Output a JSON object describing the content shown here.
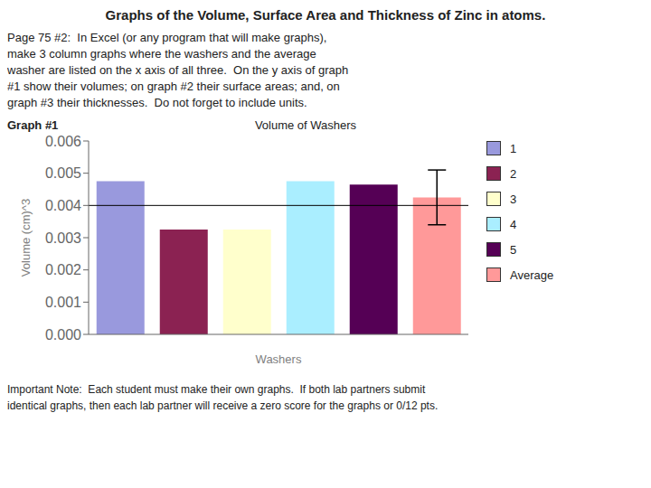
{
  "chart_data": {
    "type": "bar",
    "title": "Graphs of the Volume, Surface Area and Thickness of Zinc in atoms.",
    "subtitle": "Volume of Washers",
    "xlabel": "Washers",
    "ylabel": "Volume (cm)^3",
    "categories": [
      "1",
      "2",
      "3",
      "4",
      "5",
      "Average"
    ],
    "values": [
      0.00475,
      0.00325,
      0.00325,
      0.00475,
      0.00465,
      0.00425
    ],
    "colors": [
      "#9999DD",
      "#8B2252",
      "#FFFFCC",
      "#AAEEFF",
      "#550055",
      "#FF9999"
    ],
    "errors": [
      null,
      null,
      null,
      null,
      null,
      0.00085
    ],
    "reference_lines": [
      0.004
    ],
    "ylim": [
      0.0,
      0.006
    ],
    "yticks": [
      {
        "value": 0.0,
        "label": "0.000"
      },
      0.001,
      0.002,
      0.003,
      0.004,
      0.005,
      0.006
    ],
    "grid": false,
    "legend": "right",
    "tick_labels": "y",
    "annotations": [
      "Page 75 #2:  In Excel (or any program that will make graphs),",
      "make 3 column graphs where the washers and the average",
      "washer are listed on the x axis of all three.  On the y axis of graph",
      "#1 show their volumes; on graph #2 their surface areas; and, on",
      "graph #3 their thicknesses.  Do not forget to include units.",
      "Graph #1",
      "Important Note:  Each student must make their own graphs.  If both lab partners submit",
      "identical graphs, then each lab partner will receive a zero score for the graphs or 0/12 pts."
    ]
  }
}
